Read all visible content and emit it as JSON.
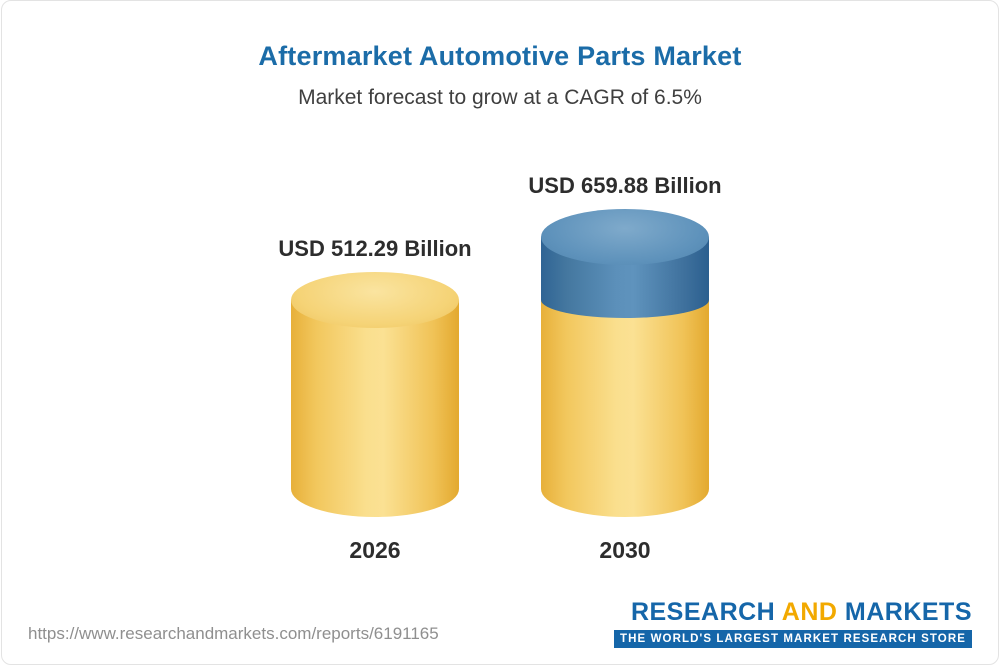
{
  "header": {
    "title": "Aftermarket Automotive Parts Market",
    "subtitle": "Market forecast to grow at a CAGR of 6.5%"
  },
  "chart_data": {
    "type": "bar",
    "title": "Aftermarket Automotive Parts Market",
    "subtitle": "Market forecast to grow at a CAGR of 6.5%",
    "categories": [
      "2026",
      "2030"
    ],
    "values": [
      512.29,
      659.88
    ],
    "value_labels": [
      "USD 512.29 Billion",
      "USD 659.88 Billion"
    ],
    "unit": "USD Billion",
    "cagr_percent": 6.5,
    "ylim": [
      0,
      659.88
    ],
    "legend": "none",
    "bar_style": "3d-cylinder",
    "colors": {
      "base_segment_gold": "#F5CE5F",
      "growth_segment_blue": "#4E82B0",
      "title_blue": "#1B6CA8"
    }
  },
  "footer": {
    "url": "https://www.researchandmarkets.com/reports/6191165",
    "logo": {
      "word_research": "RESEARCH",
      "word_and": "AND",
      "word_markets": "MARKETS",
      "tagline": "THE WORLD'S LARGEST MARKET RESEARCH STORE"
    }
  }
}
